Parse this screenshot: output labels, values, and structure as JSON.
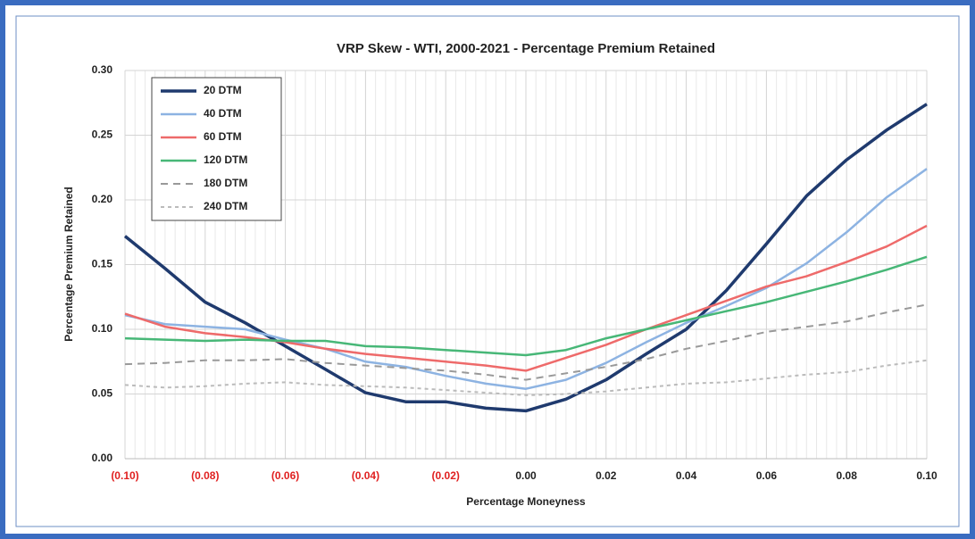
{
  "chart_data": {
    "type": "line",
    "title": "VRP Skew - WTI, 2000-2021 - Percentage Premium Retained",
    "x_label": "Percentage Moneyness",
    "y_label": "Percentage Premium Retained",
    "x": [
      -0.1,
      -0.09,
      -0.08,
      -0.07,
      -0.06,
      -0.05,
      -0.04,
      -0.03,
      -0.02,
      -0.01,
      0.0,
      0.01,
      0.02,
      0.03,
      0.04,
      0.05,
      0.06,
      0.07,
      0.08,
      0.09,
      0.1
    ],
    "series": [
      {
        "name": "20 DTM",
        "color": "#1f3a6e",
        "width": 3.5,
        "values": [
          0.172,
          0.147,
          0.121,
          0.105,
          0.087,
          0.069,
          0.051,
          0.044,
          0.044,
          0.039,
          0.037,
          0.046,
          0.061,
          0.081,
          0.1,
          0.13,
          0.166,
          0.203,
          0.231,
          0.254,
          0.274
        ]
      },
      {
        "name": "40 DTM",
        "color": "#8db3e2",
        "width": 2.5,
        "values": [
          0.111,
          0.104,
          0.102,
          0.1,
          0.092,
          0.085,
          0.075,
          0.071,
          0.064,
          0.058,
          0.054,
          0.061,
          0.074,
          0.09,
          0.105,
          0.118,
          0.132,
          0.151,
          0.175,
          0.202,
          0.224
        ]
      },
      {
        "name": "60 DTM",
        "color": "#ee6a6a",
        "width": 2.5,
        "values": [
          0.112,
          0.102,
          0.097,
          0.094,
          0.09,
          0.085,
          0.081,
          0.078,
          0.075,
          0.072,
          0.068,
          0.078,
          0.088,
          0.1,
          0.111,
          0.122,
          0.133,
          0.141,
          0.152,
          0.164,
          0.18
        ]
      },
      {
        "name": "120 DTM",
        "color": "#47b777",
        "width": 2.5,
        "values": [
          0.093,
          0.092,
          0.091,
          0.092,
          0.091,
          0.091,
          0.087,
          0.086,
          0.084,
          0.082,
          0.08,
          0.084,
          0.093,
          0.1,
          0.107,
          0.114,
          0.121,
          0.129,
          0.137,
          0.146,
          0.156
        ]
      },
      {
        "name": "180 DTM",
        "color": "#999999",
        "width": 2,
        "dash": "8,6",
        "values": [
          0.073,
          0.074,
          0.076,
          0.076,
          0.077,
          0.074,
          0.072,
          0.07,
          0.068,
          0.065,
          0.061,
          0.066,
          0.071,
          0.077,
          0.085,
          0.091,
          0.098,
          0.102,
          0.106,
          0.113,
          0.119
        ]
      },
      {
        "name": "240 DTM",
        "color": "#bbbbbb",
        "width": 2,
        "dash": "4,4",
        "values": [
          0.057,
          0.055,
          0.056,
          0.058,
          0.059,
          0.057,
          0.056,
          0.055,
          0.053,
          0.051,
          0.049,
          0.05,
          0.052,
          0.055,
          0.058,
          0.059,
          0.062,
          0.065,
          0.067,
          0.072,
          0.076
        ]
      }
    ],
    "xlim": [
      -0.1,
      0.1
    ],
    "xticks": [
      {
        "value": -0.1,
        "label": "(0.10)"
      },
      {
        "value": -0.08,
        "label": "(0.08)"
      },
      {
        "value": -0.06,
        "label": "(0.06)"
      },
      {
        "value": -0.04,
        "label": "(0.04)"
      },
      {
        "value": -0.02,
        "label": "(0.02)"
      },
      {
        "value": 0,
        "label": "0.00"
      },
      {
        "value": 0.02,
        "label": "0.02"
      },
      {
        "value": 0.04,
        "label": "0.04"
      },
      {
        "value": 0.06,
        "label": "0.06"
      },
      {
        "value": 0.08,
        "label": "0.08"
      },
      {
        "value": 0.1,
        "label": "0.10"
      }
    ],
    "ylim": [
      0,
      0.3
    ],
    "yticks": [
      {
        "value": 0,
        "label": "0.00"
      },
      {
        "value": 0.05,
        "label": "0.05"
      },
      {
        "value": 0.1,
        "label": "0.10"
      },
      {
        "value": 0.15,
        "label": "0.15"
      },
      {
        "value": 0.2,
        "label": "0.20"
      },
      {
        "value": 0.25,
        "label": "0.25"
      },
      {
        "value": 0.3,
        "label": "0.30"
      }
    ],
    "negative_label_color": "#e02020",
    "grid": true,
    "legend": "upper left"
  }
}
